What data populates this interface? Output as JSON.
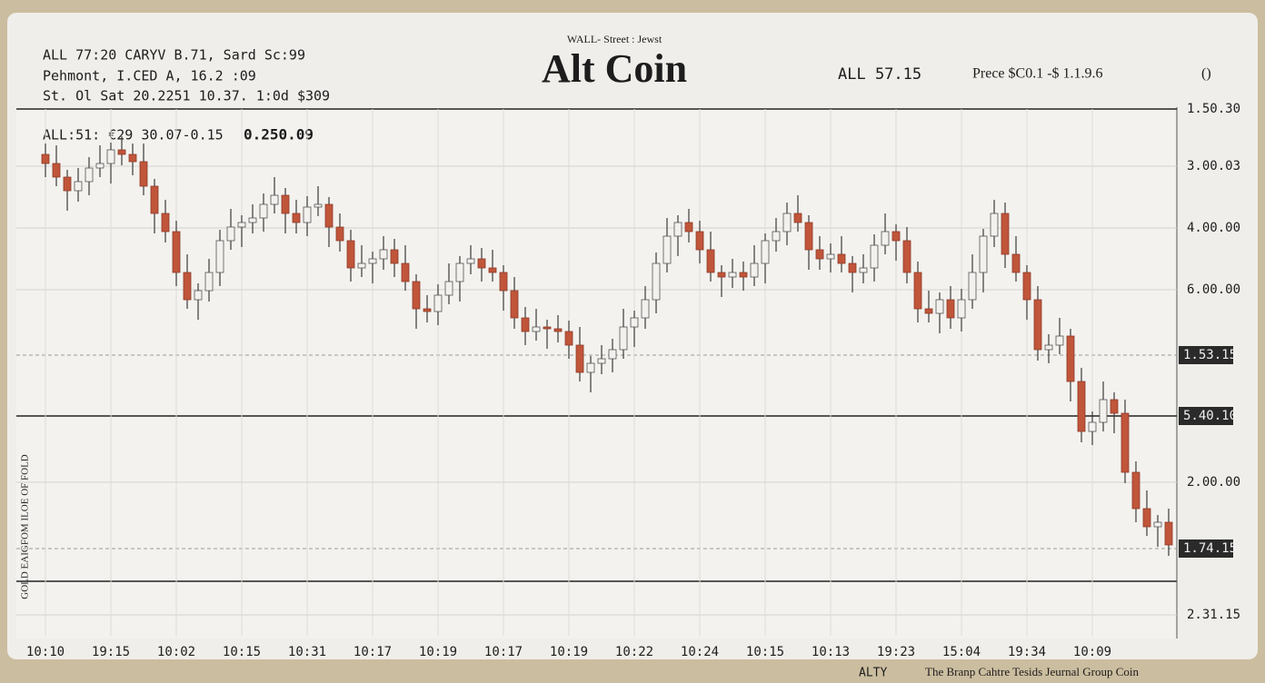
{
  "chart_data": {
    "type": "candlestick",
    "header_lines": [
      "ALL 77:20 CARYV B.71, Sard Sc:99",
      "Pehmont, I.CED A, 16.2 :09",
      "St. Ol Sat 20.2251 10.37. 1:0d $309"
    ],
    "kicker": "WALL- Street : Jewst",
    "title": "Alt Coin",
    "ticker": "ALL 57.15",
    "price_line": "Prece $C0.1 -$ 1.1.9.6",
    "icon_text": "()",
    "overlay_left": "ALL:51: €29 30.07-0.15",
    "overlay_value": "0.250.09",
    "side_label": "GOLD EAIGFOM ILOE OF FOLD",
    "footer_left": "ALTY",
    "footer_right": "The Branp Cahtre Tesids Jeurnal Group Coin",
    "up_color": "#f2f1ee",
    "down_color": "#c0553a",
    "ylim": [
      0,
      580
    ],
    "yticks": [
      {
        "value": 580,
        "label": "1.50.30"
      },
      {
        "value": 517,
        "label": "3.00.03"
      },
      {
        "value": 449,
        "label": "4.00.00"
      },
      {
        "value": 381,
        "label": "6.00.00"
      },
      {
        "value": 169,
        "label": "2.00.00"
      },
      {
        "value": 23,
        "label": "2.31.15"
      }
    ],
    "price_markers": [
      {
        "value": 309,
        "label": "1.53.15"
      },
      {
        "value": 242,
        "label": "5.40.10"
      },
      {
        "value": 96,
        "label": "1.74.15"
      }
    ],
    "grid": true,
    "categories": [
      "10:10",
      null,
      null,
      null,
      null,
      null,
      "19:15",
      null,
      null,
      null,
      null,
      null,
      "10:02",
      null,
      null,
      null,
      null,
      null,
      "10:15",
      null,
      null,
      null,
      null,
      null,
      "10:31",
      null,
      null,
      null,
      null,
      null,
      "10:17",
      null,
      null,
      null,
      null,
      null,
      "10:19",
      null,
      null,
      null,
      null,
      null,
      "10:17",
      null,
      null,
      null,
      null,
      null,
      "10:19",
      null,
      null,
      null,
      null,
      null,
      "10:22",
      null,
      null,
      null,
      null,
      null,
      "10:24",
      null,
      null,
      null,
      null,
      null,
      "10:15",
      null,
      null,
      null,
      null,
      null,
      "10:13",
      null,
      null,
      null,
      null,
      null,
      "19:23",
      null,
      null,
      null,
      null,
      null,
      "15:04",
      null,
      null,
      null,
      null,
      null,
      "19:34",
      null,
      null,
      null,
      null,
      null,
      "10:09",
      null,
      null,
      null,
      null,
      null,
      null,
      null
    ],
    "open": [
      530,
      520,
      505,
      490,
      500,
      515,
      520,
      535,
      530,
      522,
      495,
      465,
      445,
      400,
      370,
      380,
      400,
      435,
      450,
      455,
      460,
      475,
      485,
      465,
      455,
      472,
      475,
      450,
      435,
      405,
      410,
      415,
      425,
      410,
      390,
      360,
      357,
      375,
      390,
      410,
      415,
      405,
      400,
      380,
      350,
      335,
      340,
      338,
      335,
      320,
      290,
      300,
      305,
      315,
      340,
      350,
      370,
      410,
      440,
      455,
      445,
      425,
      400,
      395,
      400,
      395,
      410,
      435,
      445,
      465,
      455,
      425,
      415,
      420,
      410,
      400,
      405,
      430,
      445,
      435,
      400,
      360,
      355,
      370,
      350,
      370,
      400,
      440,
      465,
      420,
      400,
      370,
      315,
      320,
      330,
      280,
      225,
      235,
      260,
      245,
      180,
      140,
      120,
      125
    ],
    "high": [
      542,
      540,
      513,
      515,
      527,
      540,
      543,
      550,
      542,
      542,
      503,
      480,
      457,
      420,
      388,
      415,
      447,
      470,
      463,
      475,
      487,
      505,
      493,
      480,
      484,
      495,
      483,
      465,
      447,
      430,
      423,
      440,
      437,
      430,
      398,
      375,
      387,
      410,
      418,
      430,
      427,
      425,
      408,
      395,
      362,
      360,
      348,
      353,
      347,
      340,
      308,
      320,
      327,
      360,
      358,
      385,
      422,
      460,
      463,
      470,
      457,
      445,
      408,
      415,
      412,
      430,
      443,
      460,
      477,
      485,
      463,
      440,
      432,
      440,
      418,
      420,
      442,
      465,
      453,
      450,
      412,
      380,
      378,
      385,
      382,
      420,
      448,
      480,
      477,
      440,
      408,
      385,
      332,
      350,
      338,
      295,
      247,
      280,
      268,
      260,
      192,
      160,
      133,
      140
    ],
    "low": [
      505,
      495,
      468,
      478,
      485,
      505,
      498,
      518,
      507,
      485,
      443,
      433,
      385,
      360,
      348,
      368,
      385,
      425,
      428,
      443,
      445,
      465,
      443,
      443,
      440,
      462,
      428,
      423,
      390,
      395,
      388,
      403,
      395,
      380,
      338,
      345,
      342,
      365,
      368,
      398,
      390,
      390,
      358,
      338,
      320,
      325,
      316,
      323,
      305,
      280,
      268,
      288,
      290,
      305,
      318,
      338,
      355,
      400,
      418,
      433,
      410,
      390,
      373,
      383,
      380,
      385,
      388,
      423,
      430,
      445,
      403,
      403,
      400,
      400,
      378,
      388,
      390,
      420,
      413,
      388,
      345,
      345,
      333,
      338,
      335,
      360,
      378,
      428,
      405,
      390,
      348,
      303,
      300,
      310,
      258,
      213,
      210,
      225,
      223,
      168,
      125,
      110,
      98,
      88
    ],
    "close": [
      520,
      505,
      490,
      500,
      515,
      520,
      535,
      530,
      522,
      495,
      465,
      445,
      400,
      370,
      380,
      400,
      435,
      450,
      455,
      460,
      475,
      485,
      465,
      455,
      472,
      475,
      450,
      435,
      405,
      410,
      415,
      425,
      410,
      390,
      360,
      357,
      375,
      390,
      410,
      415,
      405,
      400,
      380,
      350,
      335,
      340,
      338,
      335,
      320,
      290,
      300,
      305,
      315,
      340,
      350,
      370,
      410,
      440,
      455,
      445,
      425,
      400,
      395,
      400,
      395,
      410,
      435,
      445,
      465,
      455,
      425,
      415,
      420,
      410,
      400,
      405,
      430,
      445,
      435,
      400,
      360,
      355,
      370,
      350,
      370,
      400,
      440,
      465,
      420,
      400,
      370,
      315,
      320,
      330,
      280,
      225,
      235,
      260,
      245,
      180,
      140,
      120,
      125,
      100
    ]
  }
}
